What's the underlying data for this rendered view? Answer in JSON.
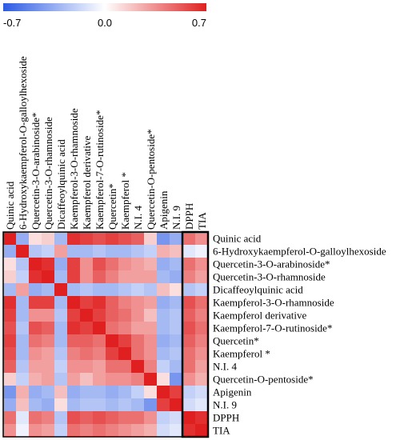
{
  "chart_data": {
    "type": "heatmap",
    "title": "",
    "color_scale": {
      "min": -0.7,
      "mid": 0.0,
      "max": 0.7,
      "min_label": "-0.7",
      "mid_label": "0.0",
      "max_label": "0.7",
      "low_color": "#2d5be3",
      "mid_color": "#ffffff",
      "high_color": "#e02020"
    },
    "variables": [
      "Quinic acid",
      "6-Hydroxykaempferol-O-galloylhexoside",
      "Quercetin-3-O-arabinoside*",
      "Quercetin-3-O-rhamnoside",
      "Dicaffeoylquinic acid",
      "Kaempferol-3-O-rhamnoside",
      "Kaempferol derivative",
      "Kaempferol-7-O-rutinoside*",
      "Quercetin*",
      "Kaempferol *",
      "N.I. 4",
      "Quercetin-O-pentoside*",
      "Apigenin",
      "N.I. 9",
      "DPPH",
      "TIA"
    ],
    "matrix": [
      [
        0.7,
        -0.35,
        0.1,
        0.15,
        -0.3,
        0.65,
        0.6,
        0.55,
        0.6,
        0.55,
        0.5,
        0.15,
        -0.45,
        -0.35,
        0.45,
        0.35
      ],
      [
        -0.35,
        0.7,
        -0.25,
        -0.2,
        0.3,
        -0.3,
        -0.3,
        -0.25,
        -0.3,
        -0.3,
        -0.25,
        -0.2,
        0.25,
        0.2,
        -0.1,
        -0.05
      ],
      [
        0.1,
        -0.25,
        0.7,
        0.65,
        -0.35,
        0.6,
        0.35,
        0.55,
        0.45,
        0.35,
        0.3,
        0.25,
        -0.35,
        -0.3,
        0.45,
        0.35
      ],
      [
        0.15,
        -0.2,
        0.65,
        0.7,
        -0.3,
        0.6,
        0.35,
        0.5,
        0.4,
        0.3,
        0.3,
        0.3,
        -0.3,
        -0.35,
        0.4,
        0.3
      ],
      [
        -0.3,
        0.3,
        -0.35,
        -0.3,
        0.7,
        -0.3,
        -0.25,
        -0.3,
        -0.3,
        -0.25,
        -0.2,
        -0.25,
        0.2,
        0.1,
        -0.25,
        -0.2
      ],
      [
        0.65,
        -0.3,
        0.6,
        0.6,
        -0.3,
        0.7,
        0.6,
        0.65,
        0.5,
        0.4,
        0.35,
        0.3,
        -0.35,
        -0.3,
        0.55,
        0.45
      ],
      [
        0.6,
        -0.3,
        0.35,
        0.35,
        -0.25,
        0.6,
        0.7,
        0.6,
        0.5,
        0.45,
        0.35,
        0.2,
        -0.3,
        -0.25,
        0.5,
        0.4
      ],
      [
        0.55,
        -0.25,
        0.55,
        0.5,
        -0.3,
        0.65,
        0.6,
        0.7,
        0.45,
        0.4,
        0.3,
        0.3,
        -0.3,
        -0.25,
        0.55,
        0.45
      ],
      [
        0.6,
        -0.3,
        0.45,
        0.4,
        -0.3,
        0.5,
        0.5,
        0.45,
        0.7,
        0.6,
        0.45,
        0.35,
        -0.35,
        -0.3,
        0.5,
        0.4
      ],
      [
        0.55,
        -0.3,
        0.35,
        0.3,
        -0.25,
        0.4,
        0.45,
        0.4,
        0.6,
        0.7,
        0.45,
        0.35,
        -0.3,
        -0.25,
        0.45,
        0.35
      ],
      [
        0.5,
        -0.25,
        0.3,
        0.3,
        -0.2,
        0.35,
        0.35,
        0.3,
        0.45,
        0.45,
        0.7,
        0.4,
        -0.2,
        -0.3,
        0.45,
        0.3
      ],
      [
        0.15,
        -0.2,
        0.25,
        0.3,
        -0.25,
        0.3,
        0.2,
        0.3,
        0.35,
        0.35,
        0.4,
        0.7,
        0.1,
        -0.45,
        0.35,
        0.25
      ],
      [
        -0.45,
        0.25,
        -0.35,
        -0.3,
        0.2,
        -0.35,
        -0.3,
        -0.3,
        -0.35,
        -0.3,
        -0.2,
        0.1,
        0.7,
        0.6,
        -0.2,
        -0.15
      ],
      [
        -0.35,
        0.2,
        -0.3,
        -0.35,
        0.1,
        -0.3,
        -0.25,
        -0.25,
        -0.3,
        -0.25,
        -0.3,
        -0.45,
        0.6,
        0.7,
        -0.15,
        -0.1
      ],
      [
        0.45,
        -0.1,
        0.45,
        0.4,
        -0.25,
        0.55,
        0.5,
        0.55,
        0.5,
        0.45,
        0.45,
        0.35,
        -0.2,
        -0.15,
        0.7,
        0.65
      ],
      [
        0.35,
        -0.05,
        0.35,
        0.3,
        -0.2,
        0.45,
        0.4,
        0.45,
        0.4,
        0.35,
        0.3,
        0.25,
        -0.15,
        -0.1,
        0.65,
        0.7
      ]
    ]
  }
}
